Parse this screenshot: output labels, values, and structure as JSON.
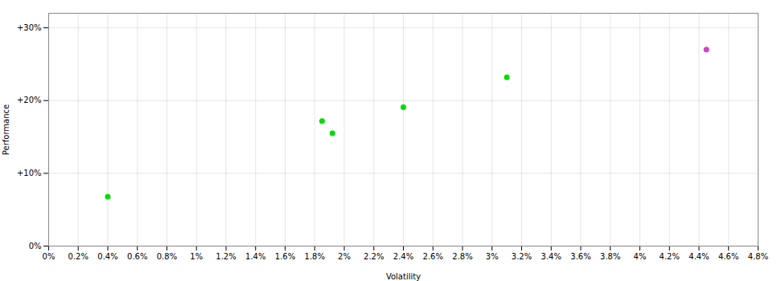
{
  "chart_data": {
    "type": "scatter",
    "xlabel": "Volatility",
    "ylabel": "Performance",
    "x": [
      0.004,
      0.0185,
      0.0192,
      0.024,
      0.031,
      0.0445
    ],
    "values": [
      0.068,
      0.172,
      0.155,
      0.191,
      0.232,
      0.27
    ],
    "colors": [
      "#00dd00",
      "#00dd00",
      "#00dd00",
      "#00dd00",
      "#00dd00",
      "#cc44cc"
    ],
    "xlim": [
      0.0,
      0.048
    ],
    "ylim": [
      0.0,
      0.32
    ],
    "xticks": [
      {
        "value": 0.0,
        "label": "0%"
      },
      {
        "value": 0.002,
        "label": "0.2%"
      },
      {
        "value": 0.004,
        "label": "0.4%"
      },
      {
        "value": 0.006,
        "label": "0.6%"
      },
      {
        "value": 0.008,
        "label": "0.8%"
      },
      {
        "value": 0.01,
        "label": "1%"
      },
      {
        "value": 0.012,
        "label": "1.2%"
      },
      {
        "value": 0.014,
        "label": "1.4%"
      },
      {
        "value": 0.016,
        "label": "1.6%"
      },
      {
        "value": 0.018,
        "label": "1.8%"
      },
      {
        "value": 0.02,
        "label": "2%"
      },
      {
        "value": 0.022,
        "label": "2.2%"
      },
      {
        "value": 0.024,
        "label": "2.4%"
      },
      {
        "value": 0.026,
        "label": "2.6%"
      },
      {
        "value": 0.028,
        "label": "2.8%"
      },
      {
        "value": 0.03,
        "label": "3%"
      },
      {
        "value": 0.032,
        "label": "3.2%"
      },
      {
        "value": 0.034,
        "label": "3.4%"
      },
      {
        "value": 0.036,
        "label": "3.6%"
      },
      {
        "value": 0.038,
        "label": "3.8%"
      },
      {
        "value": 0.04,
        "label": "4%"
      },
      {
        "value": 0.042,
        "label": "4.2%"
      },
      {
        "value": 0.044,
        "label": "4.4%"
      },
      {
        "value": 0.046,
        "label": "4.6%"
      },
      {
        "value": 0.048,
        "label": "4.8%"
      }
    ],
    "yticks": [
      {
        "value": 0.0,
        "label": "0%"
      },
      {
        "value": 0.1,
        "label": "+10%"
      },
      {
        "value": 0.2,
        "label": "+20%"
      },
      {
        "value": 0.3,
        "label": "+30%"
      }
    ],
    "grid": true
  }
}
